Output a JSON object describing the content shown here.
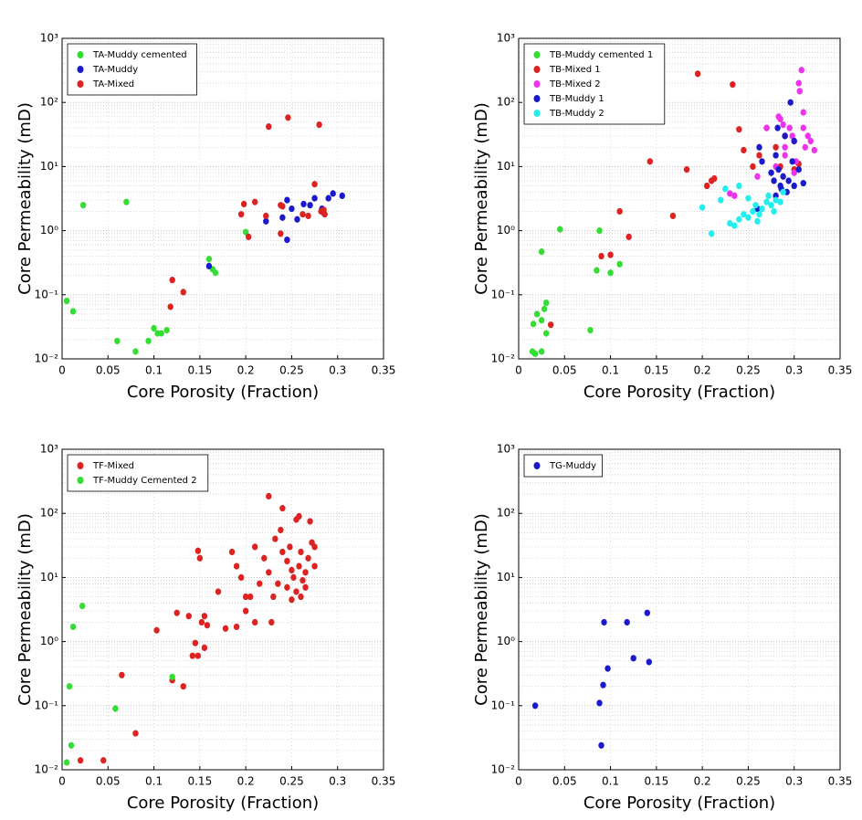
{
  "chart_data": [
    {
      "type": "scatter",
      "x_label": "Core Porosity (Fraction)",
      "y_label": "Core Permeability (mD)",
      "log_y": true,
      "grid": true,
      "legend": "upper left",
      "xlim": [
        0,
        0.35
      ],
      "xticks": [
        0,
        0.05,
        0.1,
        0.15,
        0.2,
        0.25,
        0.3,
        0.35
      ],
      "ylim": [
        0.01,
        1000
      ],
      "yticks": [
        {
          "value": 0.01,
          "label": "10⁻²"
        },
        {
          "value": 0.1,
          "label": "10⁻¹"
        },
        {
          "value": 1,
          "label": "10⁰"
        },
        {
          "value": 10,
          "label": "10¹"
        },
        {
          "value": 100,
          "label": "10²"
        },
        {
          "value": 1000,
          "label": "10³"
        }
      ],
      "series": [
        {
          "name": "TA-Muddy cemented",
          "color": "#33dd33",
          "x": [
            0.005,
            0.012,
            0.023,
            0.07,
            0.06,
            0.08,
            0.094,
            0.1,
            0.104,
            0.108,
            0.114,
            0.16,
            0.164,
            0.167,
            0.2
          ],
          "values": [
            0.08,
            0.055,
            2.5,
            2.8,
            0.019,
            0.013,
            0.019,
            0.03,
            0.025,
            0.025,
            0.028,
            0.36,
            0.25,
            0.22,
            0.95
          ]
        },
        {
          "name": "TA-Muddy",
          "color": "#1a1acc",
          "x": [
            0.16,
            0.222,
            0.24,
            0.245,
            0.245,
            0.256,
            0.263,
            0.27,
            0.275,
            0.283,
            0.29,
            0.295,
            0.305,
            0.285,
            0.25
          ],
          "values": [
            0.28,
            1.4,
            1.6,
            3,
            0.72,
            1.5,
            2.6,
            2.5,
            3.2,
            2.2,
            3.2,
            3.8,
            3.5,
            1.9,
            2.2
          ]
        },
        {
          "name": "TA-Mixed",
          "color": "#dd2222",
          "x": [
            0.12,
            0.118,
            0.132,
            0.195,
            0.198,
            0.203,
            0.21,
            0.222,
            0.225,
            0.238,
            0.238,
            0.246,
            0.262,
            0.268,
            0.275,
            0.28,
            0.282,
            0.285,
            0.286,
            0.24
          ],
          "values": [
            0.17,
            0.065,
            0.11,
            1.8,
            2.6,
            0.8,
            2.8,
            1.7,
            42,
            2.5,
            0.9,
            58,
            1.8,
            1.7,
            5.3,
            45,
            2,
            2.1,
            1.8,
            2.4
          ]
        }
      ]
    },
    {
      "type": "scatter",
      "x_label": "Core Porosity (Fraction)",
      "y_label": "Core Permeability (mD)",
      "log_y": true,
      "grid": true,
      "legend": "upper left",
      "xlim": [
        0,
        0.35
      ],
      "xticks": [
        0,
        0.05,
        0.1,
        0.15,
        0.2,
        0.25,
        0.3,
        0.35
      ],
      "ylim": [
        0.01,
        1000
      ],
      "yticks": [
        {
          "value": 0.01,
          "label": "10⁻²"
        },
        {
          "value": 0.1,
          "label": "10⁻¹"
        },
        {
          "value": 1,
          "label": "10⁰"
        },
        {
          "value": 10,
          "label": "10¹"
        },
        {
          "value": 100,
          "label": "10²"
        },
        {
          "value": 1000,
          "label": "10³"
        }
      ],
      "series": [
        {
          "name": "TB-Muddy cemented 1",
          "color": "#33dd33",
          "x": [
            0.015,
            0.018,
            0.025,
            0.016,
            0.02,
            0.025,
            0.028,
            0.03,
            0.03,
            0.025,
            0.045,
            0.088,
            0.085,
            0.1,
            0.11,
            0.078
          ],
          "values": [
            0.013,
            0.012,
            0.013,
            0.035,
            0.05,
            0.04,
            0.06,
            0.075,
            0.025,
            0.47,
            1.05,
            1,
            0.24,
            0.22,
            0.3,
            0.028
          ]
        },
        {
          "name": "TB-Mixed 1",
          "color": "#dd2222",
          "x": [
            0.035,
            0.09,
            0.1,
            0.11,
            0.12,
            0.143,
            0.168,
            0.183,
            0.195,
            0.205,
            0.21,
            0.213,
            0.233,
            0.24,
            0.245,
            0.262,
            0.255,
            0.27,
            0.28,
            0.285,
            0.29,
            0.3,
            0.305
          ],
          "values": [
            0.034,
            0.4,
            0.42,
            2,
            0.8,
            12,
            1.7,
            9,
            280,
            5,
            6,
            6.5,
            190,
            38,
            18,
            15,
            10,
            40,
            20,
            10,
            30,
            9,
            11
          ]
        },
        {
          "name": "TB-Mixed 2",
          "color": "#ee33ee",
          "x": [
            0.23,
            0.235,
            0.26,
            0.27,
            0.28,
            0.283,
            0.285,
            0.288,
            0.29,
            0.295,
            0.298,
            0.3,
            0.302,
            0.305,
            0.306,
            0.308,
            0.31,
            0.31,
            0.312,
            0.315,
            0.318,
            0.322,
            0.3,
            0.29
          ],
          "values": [
            3.8,
            3.5,
            7,
            40,
            10,
            60,
            55,
            45,
            15,
            40,
            30,
            25,
            12,
            200,
            150,
            320,
            70,
            40,
            20,
            30,
            25,
            18,
            8,
            20
          ]
        },
        {
          "name": "TB-Muddy 1",
          "color": "#1a1acc",
          "x": [
            0.26,
            0.262,
            0.265,
            0.275,
            0.278,
            0.28,
            0.282,
            0.285,
            0.286,
            0.288,
            0.29,
            0.292,
            0.294,
            0.296,
            0.298,
            0.3,
            0.3,
            0.305,
            0.31,
            0.28,
            0.283
          ],
          "values": [
            2.2,
            20,
            12,
            8,
            6,
            15,
            40,
            5,
            4.5,
            7,
            30,
            4,
            6,
            100,
            12,
            25,
            5,
            9,
            5.5,
            3.5,
            9
          ]
        },
        {
          "name": "TB-Muddy 2",
          "color": "#22eeee",
          "x": [
            0.2,
            0.21,
            0.22,
            0.225,
            0.23,
            0.235,
            0.24,
            0.245,
            0.25,
            0.255,
            0.258,
            0.262,
            0.265,
            0.27,
            0.272,
            0.275,
            0.278,
            0.28,
            0.285,
            0.288,
            0.24,
            0.25,
            0.26
          ],
          "values": [
            2.3,
            0.9,
            3,
            4.5,
            1.3,
            1.2,
            1.5,
            1.8,
            1.6,
            2,
            2.5,
            1.8,
            2.2,
            2.8,
            3.5,
            2.5,
            2,
            3,
            2.8,
            4,
            5,
            3.2,
            1.4
          ]
        }
      ]
    },
    {
      "type": "scatter",
      "x_label": "Core Porosity (Fraction)",
      "y_label": "Core Permeability (mD)",
      "log_y": true,
      "grid": true,
      "legend": "upper left",
      "xlim": [
        0,
        0.35
      ],
      "xticks": [
        0,
        0.05,
        0.1,
        0.15,
        0.2,
        0.25,
        0.3,
        0.35
      ],
      "ylim": [
        0.01,
        1000
      ],
      "yticks": [
        {
          "value": 0.01,
          "label": "10⁻²"
        },
        {
          "value": 0.1,
          "label": "10⁻¹"
        },
        {
          "value": 1,
          "label": "10⁰"
        },
        {
          "value": 10,
          "label": "10¹"
        },
        {
          "value": 100,
          "label": "10²"
        },
        {
          "value": 1000,
          "label": "10³"
        }
      ],
      "series": [
        {
          "name": "TF-Mixed",
          "color": "#dd2222",
          "x": [
            0.02,
            0.045,
            0.065,
            0.08,
            0.103,
            0.12,
            0.125,
            0.132,
            0.138,
            0.142,
            0.145,
            0.148,
            0.148,
            0.15,
            0.152,
            0.155,
            0.155,
            0.158,
            0.17,
            0.178,
            0.185,
            0.19,
            0.19,
            0.195,
            0.2,
            0.2,
            0.205,
            0.21,
            0.21,
            0.215,
            0.22,
            0.225,
            0.225,
            0.228,
            0.23,
            0.232,
            0.235,
            0.238,
            0.24,
            0.24,
            0.245,
            0.245,
            0.248,
            0.25,
            0.252,
            0.255,
            0.255,
            0.258,
            0.258,
            0.26,
            0.26,
            0.262,
            0.265,
            0.268,
            0.27,
            0.272,
            0.275,
            0.275,
            0.25,
            0.265
          ],
          "values": [
            0.014,
            0.014,
            0.3,
            0.037,
            1.5,
            0.25,
            2.8,
            0.2,
            2.5,
            0.6,
            0.95,
            0.6,
            26,
            20,
            2,
            0.8,
            2.5,
            1.8,
            6,
            1.6,
            25,
            1.7,
            15,
            10,
            3,
            5,
            5,
            2,
            30,
            8,
            20,
            12,
            185,
            2,
            5,
            40,
            8,
            55,
            120,
            25,
            7,
            18,
            30,
            4.5,
            10,
            80,
            6,
            90,
            15,
            5,
            25,
            9,
            12,
            20,
            75,
            35,
            30,
            15,
            13,
            7
          ]
        },
        {
          "name": "TF-Muddy Cemented 2",
          "color": "#33dd33",
          "x": [
            0.005,
            0.008,
            0.01,
            0.012,
            0.022,
            0.058,
            0.12
          ],
          "values": [
            0.013,
            0.2,
            0.024,
            1.7,
            3.6,
            0.09,
            0.28
          ]
        }
      ]
    },
    {
      "type": "scatter",
      "x_label": "Core Porosity (Fraction)",
      "y_label": "Core Permeability (mD)",
      "log_y": true,
      "grid": true,
      "legend": "upper left",
      "xlim": [
        0,
        0.35
      ],
      "xticks": [
        0,
        0.05,
        0.1,
        0.15,
        0.2,
        0.25,
        0.3,
        0.35
      ],
      "ylim": [
        0.01,
        1000
      ],
      "yticks": [
        {
          "value": 0.01,
          "label": "10⁻²"
        },
        {
          "value": 0.1,
          "label": "10⁻¹"
        },
        {
          "value": 1,
          "label": "10⁰"
        },
        {
          "value": 10,
          "label": "10¹"
        },
        {
          "value": 100,
          "label": "10²"
        },
        {
          "value": 1000,
          "label": "10³"
        }
      ],
      "series": [
        {
          "name": "TG-Muddy",
          "color": "#1a1acc",
          "x": [
            0.018,
            0.088,
            0.09,
            0.092,
            0.093,
            0.097,
            0.118,
            0.125,
            0.14,
            0.142
          ],
          "values": [
            0.1,
            0.11,
            0.024,
            0.21,
            2,
            0.38,
            2,
            0.55,
            2.8,
            0.48
          ]
        }
      ]
    }
  ]
}
